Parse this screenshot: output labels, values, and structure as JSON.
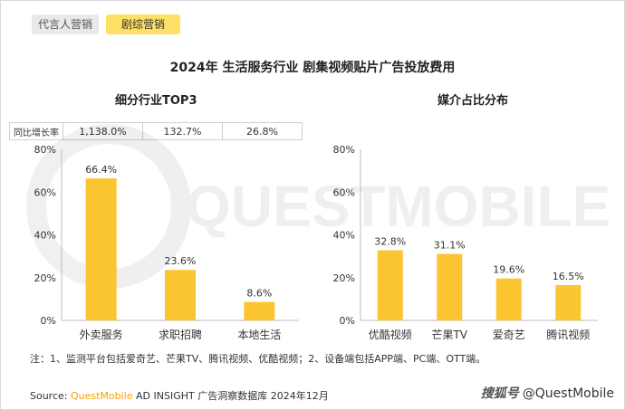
{
  "tabs": [
    {
      "label": "代言人营销"
    },
    {
      "label": "剧综营销"
    }
  ],
  "title": "2024年 生活服务行业 剧集视频贴片广告投放费用",
  "left_panel": {
    "subtitle": "细分行业TOP3",
    "growth_label": "同比增长率",
    "growth_values": [
      "1,138.0%",
      "132.7%",
      "26.8%"
    ]
  },
  "right_panel": {
    "subtitle": "媒介占比分布"
  },
  "chart_data": [
    {
      "type": "bar",
      "title": "细分行业TOP3",
      "categories": [
        "外卖服务",
        "求职招聘",
        "本地生活"
      ],
      "values": [
        66.4,
        23.6,
        8.6
      ],
      "value_labels": [
        "66.4%",
        "23.6%",
        "8.6%"
      ],
      "ylim": [
        0,
        80
      ],
      "yticks": [
        "0%",
        "20%",
        "40%",
        "60%",
        "80%"
      ],
      "grid": false,
      "bar_color": "#fbc531"
    },
    {
      "type": "bar",
      "title": "媒介占比分布",
      "categories": [
        "优酷视频",
        "芒果TV",
        "爱奇艺",
        "腾讯视频"
      ],
      "values": [
        32.8,
        31.1,
        19.6,
        16.5
      ],
      "value_labels": [
        "32.8%",
        "31.1%",
        "19.6%",
        "16.5%"
      ],
      "ylim": [
        0,
        80
      ],
      "yticks": [
        "0%",
        "20%",
        "40%",
        "60%",
        "80%"
      ],
      "grid": false,
      "bar_color": "#fbc531"
    }
  ],
  "note": "注：1、监测平台包括爱奇艺、芒果TV、腾讯视频、优酷视频；2、设备端包括APP端、PC端、OTT端。",
  "source": {
    "prefix": "Source: ",
    "brand": "QuestMobile",
    "rest": " AD INSIGHT 广告洞察数据库 2024年12月"
  },
  "logo": {
    "mark": "搜狐号",
    "text": "@QuestMobile"
  },
  "watermark_text": "QUESTMOBILE"
}
